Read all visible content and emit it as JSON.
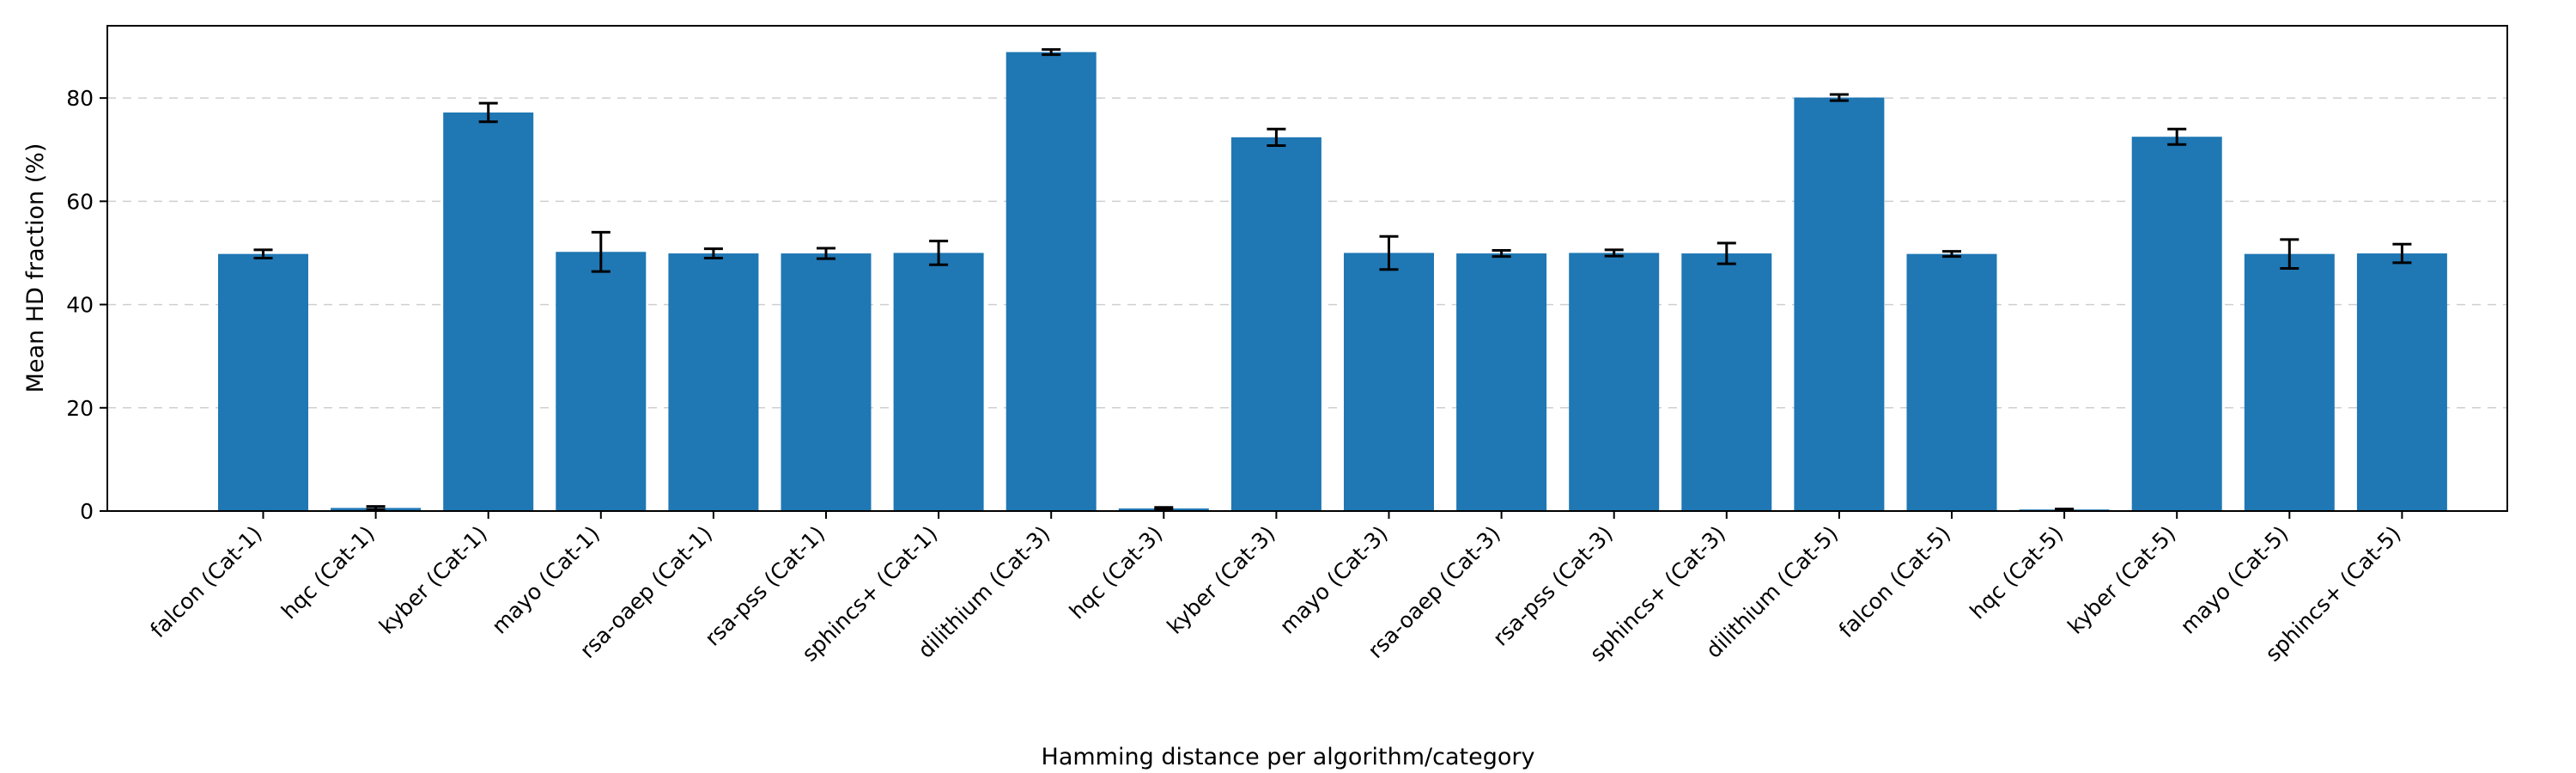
{
  "chart_data": {
    "type": "bar",
    "title": "",
    "xlabel": "Hamming distance per algorithm/category",
    "ylabel": "Mean HD fraction (%)",
    "ylim": [
      0,
      94
    ],
    "yticks": [
      0,
      20,
      40,
      60,
      80
    ],
    "grid": "y-dashed",
    "bar_color": "#1f77b4",
    "categories": [
      "falcon (Cat-1)",
      "hqc (Cat-1)",
      "kyber (Cat-1)",
      "mayo (Cat-1)",
      "rsa-oaep (Cat-1)",
      "rsa-pss (Cat-1)",
      "sphincs+ (Cat-1)",
      "dilithium (Cat-3)",
      "hqc (Cat-3)",
      "kyber (Cat-3)",
      "mayo (Cat-3)",
      "rsa-oaep (Cat-3)",
      "rsa-pss (Cat-3)",
      "sphincs+ (Cat-3)",
      "dilithium (Cat-5)",
      "falcon (Cat-5)",
      "hqc (Cat-5)",
      "kyber (Cat-5)",
      "mayo (Cat-5)",
      "sphincs+ (Cat-5)"
    ],
    "values": [
      49.8,
      0.6,
      77.2,
      50.2,
      49.9,
      49.9,
      50.0,
      88.9,
      0.5,
      72.4,
      50.0,
      49.9,
      50.0,
      49.9,
      80.1,
      49.8,
      0.3,
      72.5,
      49.8,
      49.9
    ],
    "errors": [
      0.8,
      0.3,
      1.8,
      3.8,
      0.9,
      1.0,
      2.3,
      0.5,
      0.2,
      1.6,
      3.2,
      0.6,
      0.6,
      2.0,
      0.6,
      0.5,
      0.1,
      1.5,
      2.8,
      1.8
    ]
  }
}
